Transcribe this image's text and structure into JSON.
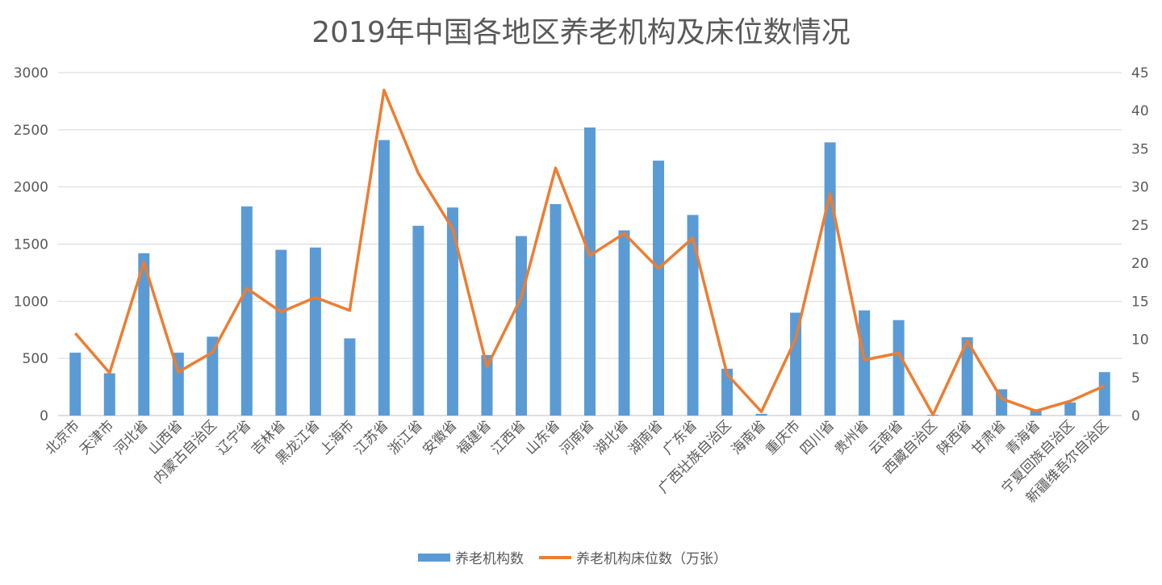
{
  "chart_data": {
    "type": "bar+line",
    "title": "2019年中国各地区养老机构及床位数情况",
    "categories": [
      "北京市",
      "天津市",
      "河北省",
      "山西省",
      "内蒙古自治区",
      "辽宁省",
      "吉林省",
      "黑龙江省",
      "上海市",
      "江苏省",
      "浙江省",
      "安徽省",
      "福建省",
      "江西省",
      "山东省",
      "河南省",
      "湖北省",
      "湖南省",
      "广东省",
      "广西壮族自治区",
      "海南省",
      "重庆市",
      "四川省",
      "贵州省",
      "云南省",
      "西藏自治区",
      "陕西省",
      "甘肃省",
      "青海省",
      "宁夏回族自治区",
      "新疆维吾尔自治区"
    ],
    "series": [
      {
        "name": "养老机构数",
        "type": "bar",
        "axis": "left",
        "color": "#5b9bd5",
        "values": [
          550,
          370,
          1420,
          550,
          690,
          1830,
          1450,
          1470,
          675,
          2410,
          1660,
          1820,
          530,
          1570,
          1850,
          2520,
          1620,
          2230,
          1755,
          410,
          15,
          900,
          2390,
          920,
          835,
          7,
          685,
          230,
          55,
          115,
          380
        ]
      },
      {
        "name": "养老机构床位数（万张）",
        "type": "line",
        "axis": "right",
        "color": "#ed7d31",
        "values": [
          10.8,
          5.6,
          20.1,
          5.7,
          8.3,
          16.7,
          13.6,
          15.5,
          13.8,
          42.7,
          31.8,
          24.5,
          6.4,
          15.5,
          32.5,
          21.0,
          23.9,
          19.3,
          23.3,
          5.4,
          0.5,
          10.1,
          29.1,
          7.3,
          8.2,
          0.1,
          9.8,
          2.2,
          0.6,
          1.9,
          3.9
        ]
      }
    ],
    "ylim_left": [
      0,
      3000
    ],
    "yticks_left": [
      0,
      500,
      1000,
      1500,
      2000,
      2500,
      3000
    ],
    "ylim_right": [
      0,
      45
    ],
    "yticks_right": [
      0,
      5,
      10,
      15,
      20,
      25,
      30,
      35,
      40,
      45
    ],
    "grid": true,
    "legend_position": "bottom"
  }
}
